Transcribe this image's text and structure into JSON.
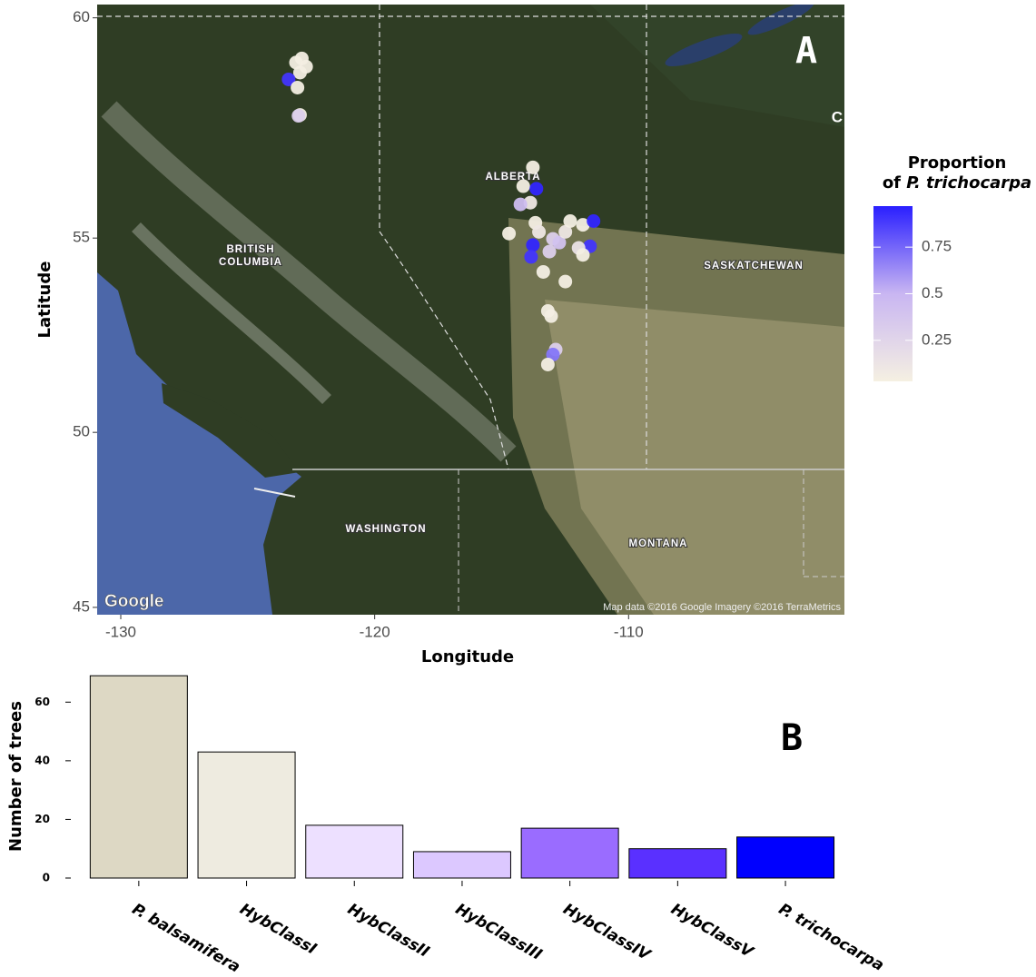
{
  "chart_data": [
    {
      "type": "scatter",
      "panel_label": "A",
      "x_label": "Longitude",
      "y_label": "Latitude",
      "xlim": [
        -130.93,
        -101.5
      ],
      "ylim": [
        44.78,
        60.28
      ],
      "xticks": [
        -130,
        -120,
        -110
      ],
      "yticks": [
        45,
        50,
        55,
        60
      ],
      "y_scale": "mercator",
      "legend_title": [
        "Proportion",
        "of",
        "P. trichocarpa"
      ],
      "color_scale": {
        "lim": [
          0.03,
          0.97
        ],
        "ticks": [
          0.25,
          0.5,
          0.75
        ],
        "colors": [
          "#f5f0e2",
          "#c9b6f2",
          "#2a1fff"
        ]
      },
      "annotations": [
        "ALBERTA",
        "BRITISH",
        "COLUMBIA",
        "SASKATCHEWAN",
        "WASHINGTON",
        "MONTANA",
        "Google",
        "Map data ©2016 Google  Imagery ©2016 TerraMetrics",
        "C"
      ],
      "x": [
        -122.87,
        -123.1,
        -122.7,
        -122.94,
        -123.39,
        -123.04,
        -122.94,
        -123.0,
        -113.77,
        -114.15,
        -113.63,
        -113.87,
        -114.26,
        -114.71,
        -113.67,
        -113.53,
        -113.77,
        -113.84,
        -112.98,
        -113.12,
        -112.73,
        -112.49,
        -112.3,
        -111.8,
        -111.38,
        -111.52,
        -111.97,
        -111.8,
        -113.36,
        -112.49,
        -113.18,
        -113.05,
        -112.87,
        -112.98,
        -113.18
      ],
      "values": [
        59.13,
        59.04,
        58.95,
        58.82,
        58.67,
        58.49,
        57.88,
        57.86,
        56.68,
        56.24,
        56.18,
        55.85,
        55.81,
        55.11,
        55.37,
        55.15,
        54.83,
        54.54,
        54.98,
        54.67,
        54.89,
        55.15,
        55.41,
        55.32,
        55.41,
        54.8,
        54.76,
        54.59,
        54.17,
        53.93,
        53.19,
        53.06,
        52.2,
        52.07,
        51.81
      ],
      "proportion": [
        0.05,
        0.05,
        0.05,
        0.05,
        0.9,
        0.05,
        0.05,
        0.3,
        0.05,
        0.05,
        0.95,
        0.1,
        0.45,
        0.05,
        0.05,
        0.1,
        0.95,
        0.9,
        0.3,
        0.3,
        0.4,
        0.1,
        0.05,
        0.05,
        0.95,
        0.9,
        0.15,
        0.05,
        0.05,
        0.05,
        0.05,
        0.05,
        0.3,
        0.7,
        0.05
      ]
    },
    {
      "type": "bar",
      "panel_label": "B",
      "y_label": "Number of trees",
      "categories": [
        "P. balsamifera",
        "HybClassI",
        "HybClassII",
        "HybClassIII",
        "HybClassIV",
        "HybClassV",
        "P. trichocarpa"
      ],
      "values": [
        69,
        43,
        18,
        9,
        17,
        10,
        14
      ],
      "colors": [
        "#ddd8c4",
        "#eeebe0",
        "#ede0ff",
        "#dcc8ff",
        "#9a6cff",
        "#5a30ff",
        "#0000ff"
      ],
      "ylim": [
        0,
        70
      ],
      "yticks": [
        0,
        20,
        40,
        60
      ]
    }
  ]
}
